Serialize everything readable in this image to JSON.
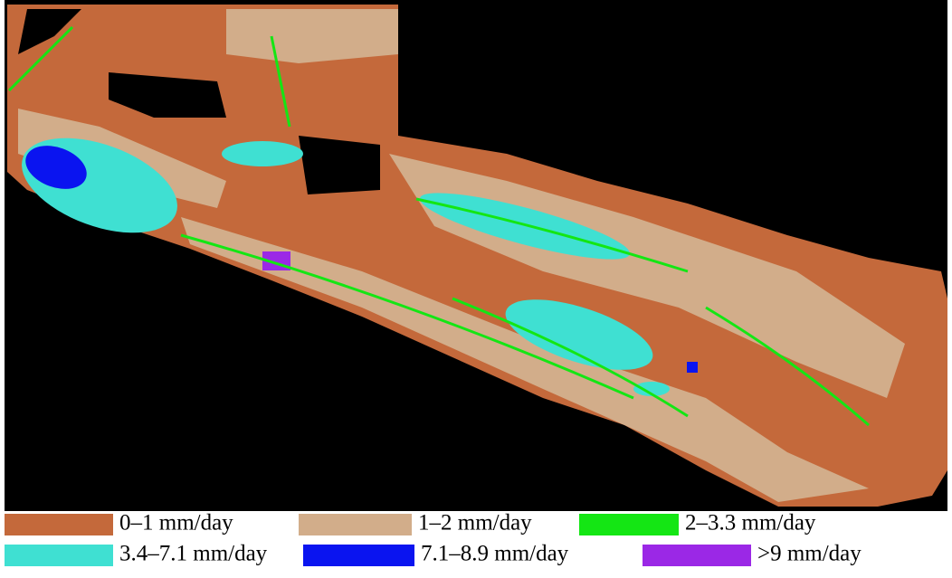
{
  "legend": {
    "items": [
      {
        "label": "0–1 mm/day",
        "color": "#c4693b"
      },
      {
        "label": "1–2 mm/day",
        "color": "#d2ad8a"
      },
      {
        "label": "2–3.3 mm/day",
        "color": "#14e614"
      },
      {
        "label": "3.4–7.1 mm/day",
        "color": "#3fe0d2"
      },
      {
        "label": "7.1–8.9 mm/day",
        "color": "#0a14f0"
      },
      {
        "label": ">9 mm/day",
        "color": "#9b28e6"
      }
    ]
  }
}
